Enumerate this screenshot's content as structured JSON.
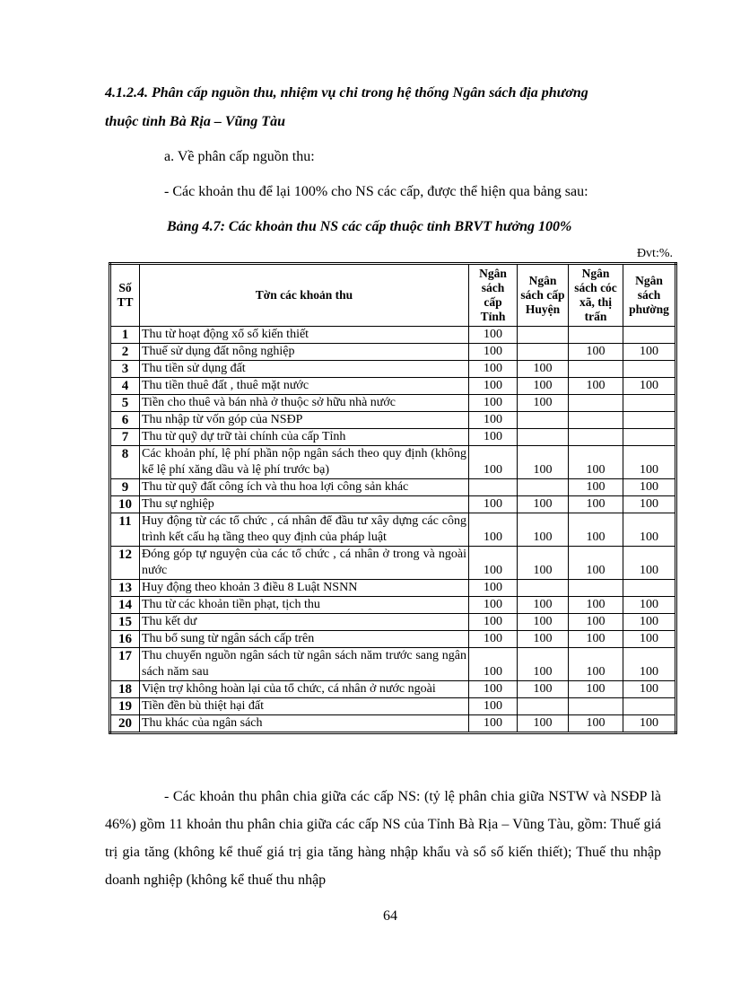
{
  "heading": {
    "line1": "4.1.2.4. Phân cấp nguồn thu, nhiệm vụ chi trong hệ thống Ngân sách địa phương",
    "line2": "thuộc tỉnh Bà Rịa – Vũng Tàu"
  },
  "subheading": "a. Về phân cấp nguồn thu:",
  "intro": "- Các khoản thu để lại 100% cho NS các cấp, được thể hiện qua bảng sau:",
  "table_caption": "Bảng 4.7: Các khoản thu NS các cấp thuộc tỉnh BRVT hưởng 100%",
  "unit": "Đvt:%.",
  "table": {
    "headers": [
      "Số TT",
      "Tờn các khoản thu",
      "Ngân sách cấp Tỉnh",
      "Ngân sách cấp Huyện",
      "Ngân sách cóc xã, thị trấn",
      "Ngân sách phường"
    ],
    "rows": [
      {
        "stt": "1",
        "name": "Thu từ hoạt động xổ số kiến thiết",
        "v": [
          "100",
          "",
          "",
          ""
        ]
      },
      {
        "stt": "2",
        "name": "Thuế sử dụng đất nông nghiệp",
        "v": [
          "100",
          "",
          "100",
          "100"
        ]
      },
      {
        "stt": "3",
        "name": "Thu tiền sử dụng đất",
        "v": [
          "100",
          "100",
          "",
          ""
        ]
      },
      {
        "stt": "4",
        "name": "Thu tiền thuê đất , thuê mặt nước",
        "v": [
          "100",
          "100",
          "100",
          "100"
        ]
      },
      {
        "stt": "5",
        "name": "Tiền cho thuê và bán nhà ở thuộc sở hữu nhà nước",
        "v": [
          "100",
          "100",
          "",
          ""
        ]
      },
      {
        "stt": "6",
        "name": "Thu nhập từ vốn góp của NSĐP",
        "v": [
          "100",
          "",
          "",
          ""
        ]
      },
      {
        "stt": "7",
        "name": "Thu từ quỹ dự trữ tài chính của cấp Tỉnh",
        "v": [
          "100",
          "",
          "",
          ""
        ]
      },
      {
        "stt": "8",
        "name": "Các khoản phí, lệ phí phần nộp ngân sách theo quy định (không kể lệ phí xăng dầu và lệ phí trước bạ)",
        "v": [
          "100",
          "100",
          "100",
          "100"
        ]
      },
      {
        "stt": "9",
        "name": "Thu từ quỹ đất công ích và thu hoa lợi công sản khác",
        "v": [
          "",
          "",
          "100",
          "100"
        ]
      },
      {
        "stt": "10",
        "name": "Thu sự nghiệp",
        "v": [
          "100",
          "100",
          "100",
          "100"
        ]
      },
      {
        "stt": "11",
        "name": "Huy động từ các tổ chức , cá nhân để đầu tư xây dựng các công trình kết cấu hạ tầng theo quy định của pháp luật",
        "v": [
          "100",
          "100",
          "100",
          "100"
        ]
      },
      {
        "stt": "12",
        "name": "Đóng góp tự nguyện của các tổ chức , cá nhân ở trong và ngoài nước",
        "v": [
          "100",
          "100",
          "100",
          "100"
        ]
      },
      {
        "stt": "13",
        "name": "Huy động theo khoản 3 điều 8 Luật NSNN",
        "v": [
          "100",
          "",
          "",
          ""
        ]
      },
      {
        "stt": "14",
        "name": "Thu từ các khoản tiền phạt, tịch thu",
        "v": [
          "100",
          "100",
          "100",
          "100"
        ]
      },
      {
        "stt": "15",
        "name": "Thu kết dư",
        "v": [
          "100",
          "100",
          "100",
          "100"
        ]
      },
      {
        "stt": "16",
        "name": "Thu bổ sung từ ngân sách cấp trên",
        "v": [
          "100",
          "100",
          "100",
          "100"
        ]
      },
      {
        "stt": "17",
        "name": "Thu chuyển nguồn ngân sách từ ngân sách năm trước sang ngân sách năm sau",
        "v": [
          "100",
          "100",
          "100",
          "100"
        ]
      },
      {
        "stt": "18",
        "name": "Viện trợ không hoàn lại của tổ chức, cá nhân ở nước ngoài",
        "v": [
          "100",
          "100",
          "100",
          "100"
        ]
      },
      {
        "stt": "19",
        "name": "Tiền đền bù thiệt hại đất",
        "v": [
          "100",
          "",
          "",
          ""
        ]
      },
      {
        "stt": "20",
        "name": "Thu khác của ngân sách",
        "v": [
          "100",
          "100",
          "100",
          "100"
        ]
      }
    ]
  },
  "paragraph": "- Các khoản thu phân chia giữa các cấp NS: (tỷ lệ phân chia giữa NSTW và NSĐP là 46%) gồm 11 khoản thu phân chia giữa các cấp NS của Tỉnh Bà Rịa – Vũng Tàu, gồm: Thuế giá trị gia tăng (không kể thuế giá trị gia tăng hàng nhập khẩu và sổ số kiến thiết); Thuế thu nhập doanh nghiệp (không kể thuế thu nhập",
  "page_number": "64"
}
